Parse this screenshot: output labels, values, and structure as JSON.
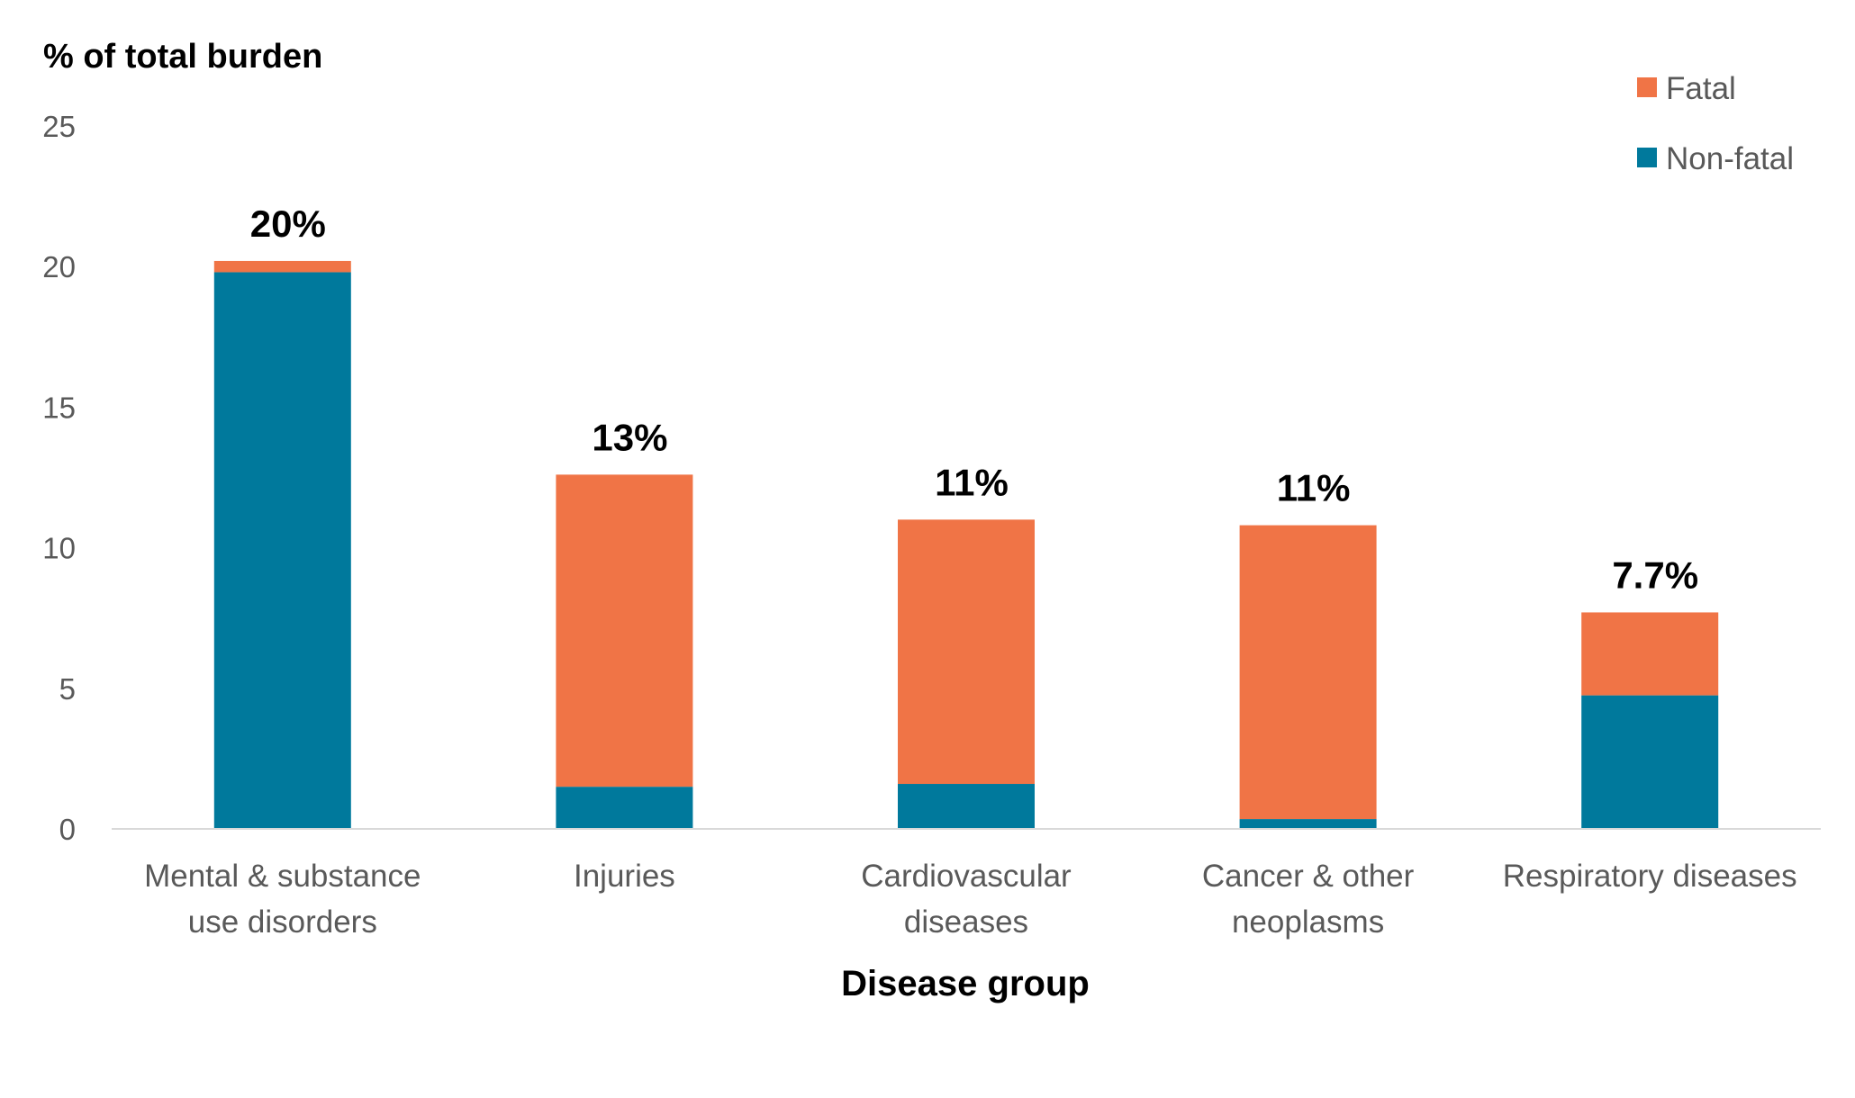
{
  "chart_data": {
    "type": "bar",
    "stacked": true,
    "title": "",
    "ylabel": "% of total burden",
    "xlabel": "Disease group",
    "ylim": [
      0,
      25
    ],
    "yticks": [
      "0",
      "5",
      "10",
      "15",
      "20",
      "25"
    ],
    "categories": [
      [
        "Mental & substance",
        "use disorders"
      ],
      [
        "Injuries"
      ],
      [
        "Cardiovascular",
        "diseases"
      ],
      [
        "Cancer & other",
        "neoplasms"
      ],
      [
        "Respiratory diseases"
      ]
    ],
    "series": [
      {
        "name": "Non-fatal",
        "color": "#00799C",
        "values": [
          19.8,
          1.5,
          1.6,
          0.35,
          4.75
        ]
      },
      {
        "name": "Fatal",
        "color": "#F07446",
        "values": [
          0.4,
          11.1,
          9.4,
          10.45,
          2.95
        ]
      }
    ],
    "data_labels": [
      "20%",
      "13%",
      "11%",
      "11%",
      "7.7%"
    ],
    "legend": {
      "position": "top-right",
      "entries": [
        {
          "label": "Fatal",
          "color": "#F07446"
        },
        {
          "label": "Non-fatal",
          "color": "#00799C"
        }
      ]
    },
    "grid": false,
    "axis_color": "#D9D9D9"
  }
}
